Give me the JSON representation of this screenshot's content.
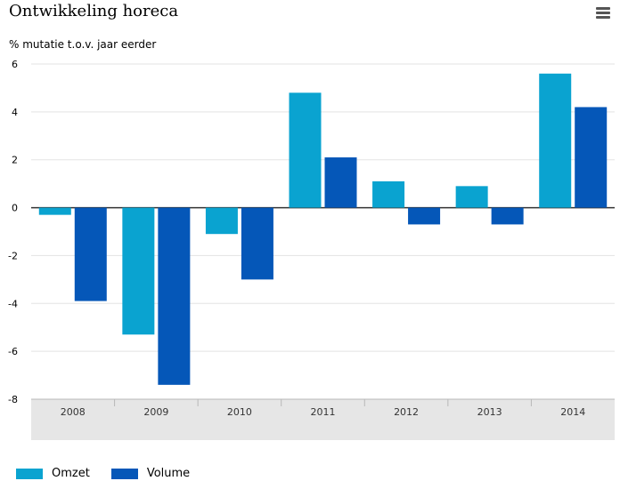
{
  "header": {
    "title": "Ontwikkeling horeca",
    "subtitle": "% mutatie t.o.v. jaar eerder"
  },
  "menu": {
    "icon": "hamburger-menu-icon"
  },
  "chart_data": {
    "type": "bar",
    "categories": [
      "2008",
      "2009",
      "2010",
      "2011",
      "2012",
      "2013",
      "2014"
    ],
    "series": [
      {
        "name": "Omzet",
        "color": "#0aa3d0",
        "values": [
          -0.3,
          -5.3,
          -1.1,
          4.8,
          1.1,
          0.9,
          5.6
        ]
      },
      {
        "name": "Volume",
        "color": "#0557b8",
        "values": [
          -3.9,
          -7.4,
          -3.0,
          2.1,
          -0.7,
          -0.7,
          4.2
        ]
      }
    ],
    "ylim": [
      -8,
      6
    ],
    "yticks": [
      "-8",
      "-6",
      "-4",
      "-2",
      "0",
      "2",
      "4",
      "6"
    ],
    "grid": true,
    "legend": "bottom-left"
  }
}
